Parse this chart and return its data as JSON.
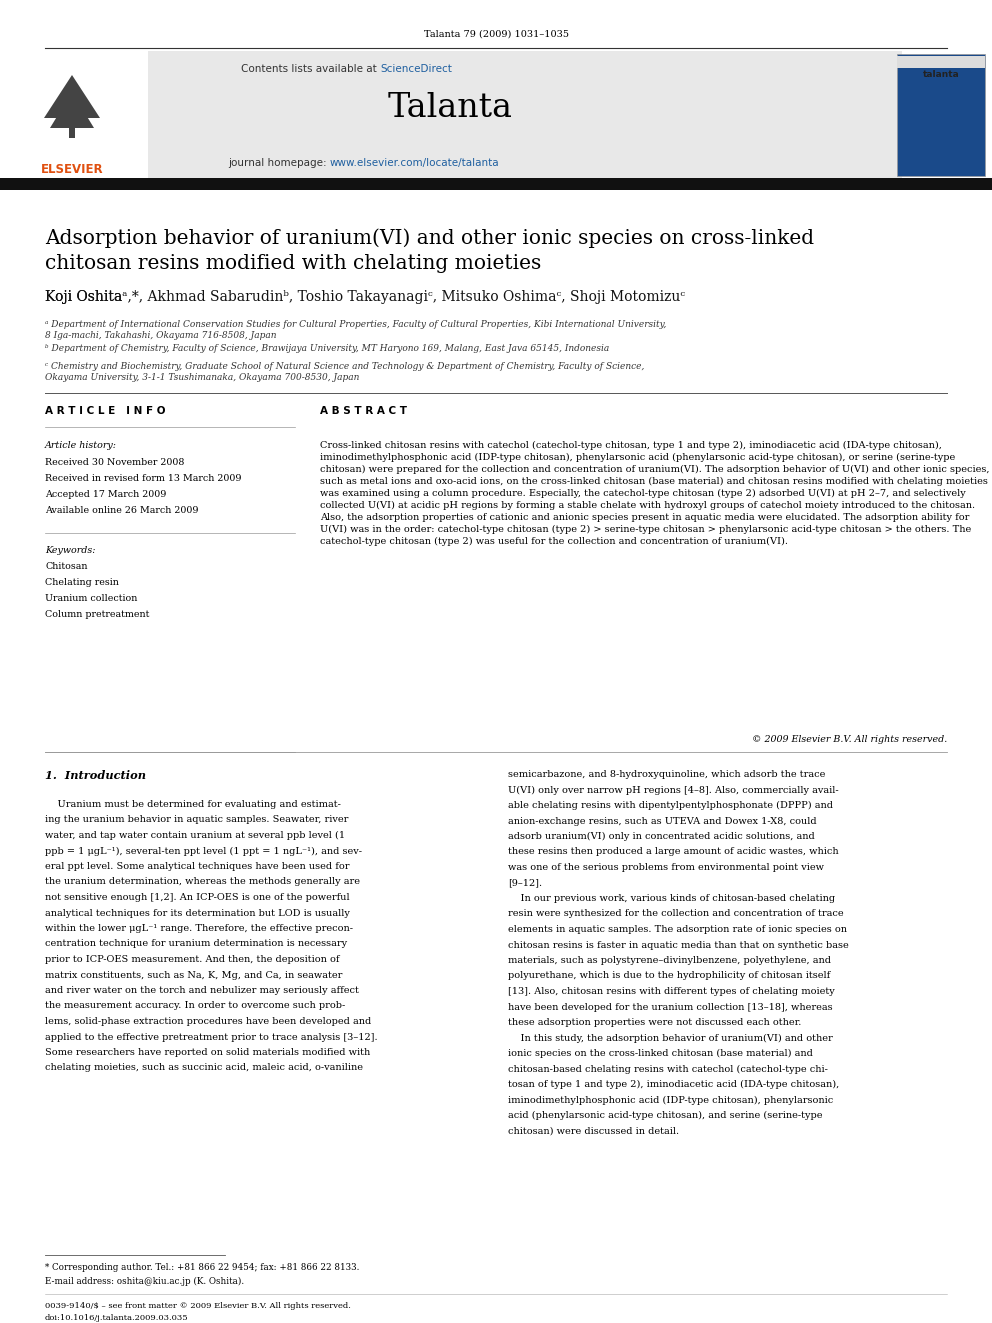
{
  "page_width": 9.92,
  "page_height": 13.23,
  "background_color": "#ffffff",
  "journal_ref": "Talanta 79 (2009) 1031–1035",
  "header_bg": "#e8e8e8",
  "sciencedirect_color": "#2060a0",
  "journal_name": "Talanta",
  "journal_url_color": "#2060a0",
  "title_bar_color": "#111111",
  "article_title": "Adsorption behavior of uranium(VI) and other ionic species on cross-linked\nchitosan resins modified with chelating moieties",
  "affil_a": "ᵃ Department of International Conservation Studies for Cultural Properties, Faculty of Cultural Properties, Kibi International University,\n8 Iga-machi, Takahashi, Okayama 716-8508, Japan",
  "affil_b": "ᵇ Department of Chemistry, Faculty of Science, Brawijaya University, MT Haryono 169, Malang, East Java 65145, Indonesia",
  "affil_c": "ᶜ Chemistry and Biochemistry, Graduate School of Natural Science and Technology & Department of Chemistry, Faculty of Science,\nOkayama University, 3-1-1 Tsushimanaka, Okayama 700-8530, Japan",
  "article_info_header": "A R T I C L E   I N F O",
  "abstract_header": "A B S T R A C T",
  "article_history_label": "Article history:",
  "received": "Received 30 November 2008",
  "revised": "Received in revised form 13 March 2009",
  "accepted": "Accepted 17 March 2009",
  "available": "Available online 26 March 2009",
  "keywords_label": "Keywords:",
  "keywords": [
    "Chitosan",
    "Chelating resin",
    "Uranium collection",
    "Column pretreatment"
  ],
  "abstract_text": "Cross-linked chitosan resins with catechol (catechol-type chitosan, type 1 and type 2), iminodiacetic acid (IDA-type chitosan), iminodimethylphosphonic acid (IDP-type chitosan), phenylarsonic acid (phenylarsonic acid-type chitosan), or serine (serine-type chitosan) were prepared for the collection and concentration of uranium(VI). The adsorption behavior of U(VI) and other ionic species, such as metal ions and oxo-acid ions, on the cross-linked chitosan (base material) and chitosan resins modified with chelating moieties was examined using a column procedure. Especially, the catechol-type chitosan (type 2) adsorbed U(VI) at pH 2–7, and selectively collected U(VI) at acidic pH regions by forming a stable chelate with hydroxyl groups of catechol moiety introduced to the chitosan. Also, the adsorption properties of cationic and anionic species present in aquatic media were elucidated. The adsorption ability for U(VI) was in the order: catechol-type chitosan (type 2) > serine-type chitosan > phenylarsonic acid-type chitosan > the others. The catechol-type chitosan (type 2) was useful for the collection and concentration of uranium(VI).",
  "copyright": "© 2009 Elsevier B.V. All rights reserved.",
  "section1_title": "1.  Introduction",
  "intro_col1_lines": [
    "    Uranium must be determined for evaluating and estimat-",
    "ing the uranium behavior in aquatic samples. Seawater, river",
    "water, and tap water contain uranium at several ppb level (1",
    "ppb = 1 μgL⁻¹), several-ten ppt level (1 ppt = 1 ngL⁻¹), and sev-",
    "eral ppt level. Some analytical techniques have been used for",
    "the uranium determination, whereas the methods generally are",
    "not sensitive enough [1,2]. An ICP-OES is one of the powerful",
    "analytical techniques for its determination but LOD is usually",
    "within the lower μgL⁻¹ range. Therefore, the effective precon-",
    "centration technique for uranium determination is necessary",
    "prior to ICP-OES measurement. And then, the deposition of",
    "matrix constituents, such as Na, K, Mg, and Ca, in seawater",
    "and river water on the torch and nebulizer may seriously affect",
    "the measurement accuracy. In order to overcome such prob-",
    "lems, solid-phase extraction procedures have been developed and",
    "applied to the effective pretreatment prior to trace analysis [3–12].",
    "Some researchers have reported on solid materials modified with",
    "chelating moieties, such as succinic acid, maleic acid, o-vaniline"
  ],
  "intro_col2_lines": [
    "semicarbazone, and 8-hydroxyquinoline, which adsorb the trace",
    "U(VI) only over narrow pH regions [4–8]. Also, commercially avail-",
    "able chelating resins with dipentylpentylphosphonate (DPPP) and",
    "anion-exchange resins, such as UTEVA and Dowex 1-X8, could",
    "adsorb uranium(VI) only in concentrated acidic solutions, and",
    "these resins then produced a large amount of acidic wastes, which",
    "was one of the serious problems from environmental point view",
    "[9–12].",
    "    In our previous work, various kinds of chitosan-based chelating",
    "resin were synthesized for the collection and concentration of trace",
    "elements in aquatic samples. The adsorption rate of ionic species on",
    "chitosan resins is faster in aquatic media than that on synthetic base",
    "materials, such as polystyrene–divinylbenzene, polyethylene, and",
    "polyurethane, which is due to the hydrophilicity of chitosan itself",
    "[13]. Also, chitosan resins with different types of chelating moiety",
    "have been developed for the uranium collection [13–18], whereas",
    "these adsorption properties were not discussed each other.",
    "    In this study, the adsorption behavior of uranium(VI) and other",
    "ionic species on the cross-linked chitosan (base material) and",
    "chitosan-based chelating resins with catechol (catechol-type chi-",
    "tosan of type 1 and type 2), iminodiacetic acid (IDA-type chitosan),",
    "iminodimethylphosphonic acid (IDP-type chitosan), phenylarsonic",
    "acid (phenylarsonic acid-type chitosan), and serine (serine-type",
    "chitosan) were discussed in detail."
  ],
  "footnote_star": "* Corresponding author. Tel.: +81 866 22 9454; fax: +81 866 22 8133.",
  "footnote_email": "E-mail address: oshita@kiu.ac.jp (K. Oshita).",
  "footer_issn": "0039-9140/$ – see front matter © 2009 Elsevier B.V. All rights reserved.",
  "footer_doi": "doi:10.1016/j.talanta.2009.03.035"
}
